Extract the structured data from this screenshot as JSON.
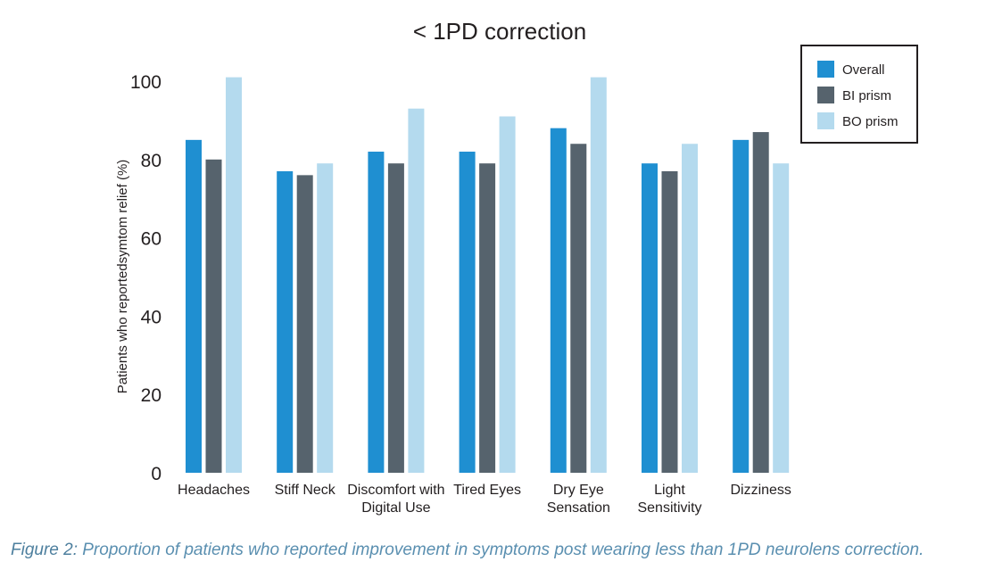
{
  "chart_data": {
    "type": "bar",
    "title": "< 1PD correction",
    "xlabel": "",
    "ylabel": "Patients who reportedsymtom relief (%)",
    "ylim": [
      0,
      100
    ],
    "yticks": [
      0,
      20,
      40,
      60,
      80,
      100
    ],
    "grid": false,
    "legend_position": "top-right",
    "categories": [
      [
        "Headaches"
      ],
      [
        "Stiff Neck"
      ],
      [
        "Discomfort with",
        "Digital Use"
      ],
      [
        "Tired Eyes"
      ],
      [
        "Dry Eye",
        "Sensation"
      ],
      [
        "Light",
        "Sensitivity"
      ],
      [
        "Dizziness"
      ]
    ],
    "series": [
      {
        "name": "Overall",
        "color": "#1f8fd1",
        "values": [
          85,
          77,
          82,
          82,
          88,
          79,
          85
        ]
      },
      {
        "name": "BI prism",
        "color": "#56636d",
        "values": [
          80,
          76,
          79,
          79,
          84,
          77,
          87
        ]
      },
      {
        "name": "BO prism",
        "color": "#b4daee",
        "values": [
          101,
          79,
          93,
          91,
          101,
          84,
          79
        ]
      }
    ]
  },
  "caption": {
    "label": "Figure 2:",
    "text": " Proportion of patients who reported improvement in symptoms post wearing less than 1PD neurolens correction."
  }
}
